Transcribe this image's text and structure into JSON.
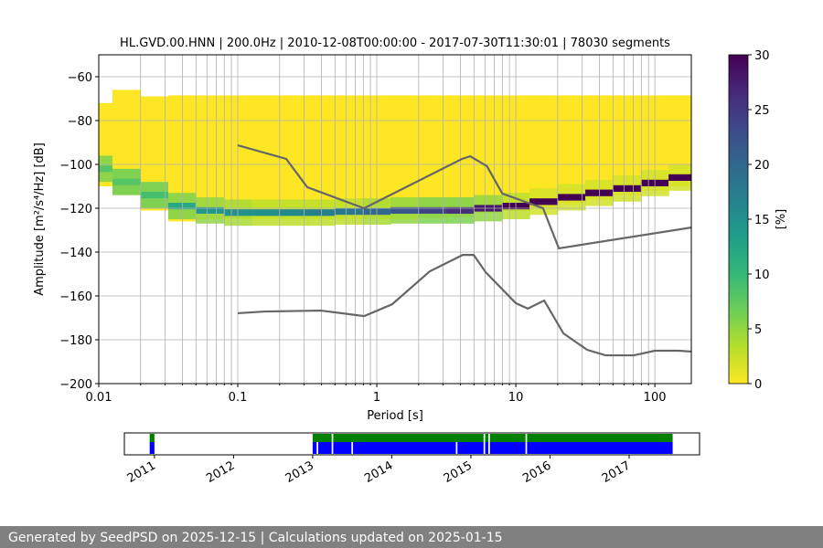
{
  "chart_data": [
    {
      "type": "psd",
      "title": "HL.GVD.00.HNN | 200.0Hz | 2010-12-08T00:00:00 - 2017-07-30T11:30:01 | 78030 segments",
      "xlabel": "Period [s]",
      "ylabel": "Amplitude [m²/s⁴/Hz] [dB]",
      "xscale": "log",
      "xlim": [
        0.01,
        183
      ],
      "ylim": [
        -200,
        -50
      ],
      "xticks": [
        0.01,
        0.1,
        1,
        10,
        100
      ],
      "xminorticks": [
        0.02,
        0.03,
        0.04,
        0.05,
        0.06,
        0.07,
        0.08,
        0.09,
        0.2,
        0.3,
        0.4,
        0.5,
        0.6,
        0.7,
        0.8,
        0.9,
        2,
        3,
        4,
        5,
        6,
        7,
        8,
        9,
        20,
        30,
        40,
        50,
        60,
        70,
        80,
        90
      ],
      "yticks": [
        {
          "value": -200,
          "label": "−200"
        },
        {
          "value": -180,
          "label": "−180"
        },
        {
          "value": -160,
          "label": "−160"
        },
        {
          "value": -140,
          "label": "−140"
        },
        {
          "value": -120,
          "label": "−120"
        },
        {
          "value": -100,
          "label": "−100"
        },
        {
          "value": -80,
          "label": "−80"
        },
        {
          "value": -60,
          "label": "−60"
        }
      ],
      "grid": true,
      "colormap": "viridis_r",
      "clim": [
        0,
        30
      ],
      "cticks": [
        0,
        5,
        10,
        15,
        20,
        25,
        30
      ],
      "clabel": "[%]",
      "density": {
        "periods": [
          0.01,
          0.0158,
          0.0251,
          0.0398,
          0.0631,
          0.1,
          0.158,
          0.251,
          0.398,
          0.631,
          1,
          1.58,
          2.51,
          3.98,
          6.31,
          10,
          15.8,
          25.1,
          39.8,
          63.1,
          100,
          158
        ],
        "upper": [
          -72,
          -66,
          -69,
          -68.5,
          -68.5,
          -68.5,
          -68.5,
          -68.5,
          -68.5,
          -68.5,
          -68.5,
          -68.5,
          -68.5,
          -68.5,
          -68.5,
          -68.5,
          -68.5,
          -68.5,
          -68.5,
          -68.5,
          -68.5,
          -68.5
        ],
        "lower": [
          -110,
          -114,
          -121,
          -126,
          -125,
          -125,
          -125,
          -125,
          -125,
          -125,
          -125,
          -125,
          -124.5,
          -124,
          -122,
          -121,
          -120,
          -118,
          -116,
          -114,
          -112,
          -110
        ],
        "mode": [
          -102,
          -108,
          -114,
          -119,
          -121,
          -122,
          -122,
          -122,
          -122,
          -121.5,
          -121.5,
          -121,
          -121,
          -121,
          -120,
          -119,
          -117,
          -115,
          -113,
          -111,
          -108.5,
          -106
        ],
        "mode_pct": [
          8,
          8,
          9,
          12,
          14,
          15,
          15,
          16,
          17,
          18,
          20,
          22,
          24,
          26,
          28,
          30,
          30,
          30,
          30,
          30,
          30,
          30
        ],
        "halo_pct": [
          6,
          7,
          7,
          6,
          5,
          4,
          3,
          3,
          3,
          3,
          4,
          5,
          6,
          6,
          5,
          3,
          2,
          2,
          2,
          2,
          2,
          2
        ]
      },
      "series": [
        {
          "color": "#666666",
          "x": [
            0.1,
            0.223,
            0.316,
            0.81,
            4.1,
            4.7,
            6.2,
            8.0,
            15.7,
            20.4,
            183
          ],
          "values": [
            -91.3,
            -97.5,
            -110.4,
            -120,
            -97.5,
            -96.3,
            -100.8,
            -113.3,
            -120,
            -138.3,
            -128.8
          ]
        },
        {
          "color": "#666666",
          "x": [
            0.1,
            0.157,
            0.397,
            0.81,
            1.29,
            2.4,
            4.15,
            4.98,
            6.07,
            10,
            12.2,
            16.0,
            22.0,
            32.6,
            44.2,
            70.6,
            100,
            148,
            183
          ],
          "values": [
            -167.9,
            -167.1,
            -166.7,
            -169.2,
            -163.8,
            -148.8,
            -141.3,
            -141.3,
            -149.2,
            -163.3,
            -165.8,
            -162.1,
            -177.1,
            -184.6,
            -187.1,
            -187.1,
            -185,
            -185,
            -185.4
          ]
        }
      ]
    },
    {
      "type": "timeline",
      "xlim": [
        2010.62,
        2017.89
      ],
      "xticks": [
        2011,
        2012,
        2013,
        2014,
        2015,
        2016,
        2017
      ],
      "series": [
        {
          "color": "#008000",
          "intervals": [
            [
              2010.94,
              2011.0
            ],
            [
              2013.0,
              2013.24
            ],
            [
              2013.26,
              2015.16
            ],
            [
              2015.18,
              2015.22
            ],
            [
              2015.24,
              2015.69
            ],
            [
              2015.71,
              2017.55
            ]
          ]
        },
        {
          "color": "#0000ff",
          "intervals": [
            [
              2010.94,
              2011.0
            ],
            [
              2013.0,
              2013.05
            ],
            [
              2013.07,
              2013.24
            ],
            [
              2013.26,
              2013.49
            ],
            [
              2013.51,
              2014.81
            ],
            [
              2014.83,
              2015.16
            ],
            [
              2015.18,
              2015.22
            ],
            [
              2015.24,
              2015.69
            ],
            [
              2015.71,
              2017.55
            ]
          ]
        }
      ]
    }
  ],
  "footer": "Generated by SeedPSD on 2025-12-15 | Calculations updated on 2025-01-15"
}
